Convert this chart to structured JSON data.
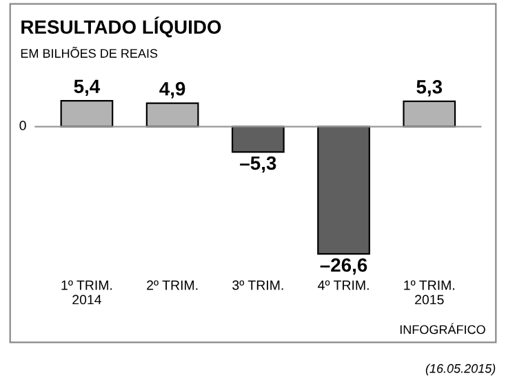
{
  "chart_data": {
    "type": "bar",
    "title": "RESULTADO LÍQUIDO",
    "subtitle": "EM BILHÕES DE REAIS",
    "categories": [
      "1º TRIM.\n2014",
      "2º TRIM.",
      "3º TRIM.",
      "4º TRIM.",
      "1º TRIM.\n2015"
    ],
    "values": [
      5.4,
      4.9,
      -5.3,
      -26.6,
      5.3
    ],
    "colors": [
      "#b3b3b3",
      "#b3b3b3",
      "#5f5f5f",
      "#5f5f5f",
      "#b3b3b3"
    ],
    "value_labels": [
      "5,4",
      "4,9",
      "–5,3",
      "–26,6",
      "5,3"
    ],
    "annotations": [
      "0",
      "INFOGRÁFICO",
      "(16.05.2015)"
    ]
  }
}
